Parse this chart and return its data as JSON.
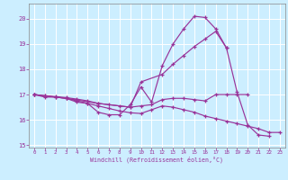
{
  "background_color": "#cceeff",
  "grid_color": "#ffffff",
  "line_color": "#993399",
  "xlabel": "Windchill (Refroidissement éolien,°C)",
  "ylim": [
    14.9,
    20.6
  ],
  "xlim": [
    -0.5,
    23.5
  ],
  "yticks": [
    15,
    16,
    17,
    18,
    19,
    20
  ],
  "xticks": [
    0,
    1,
    2,
    3,
    4,
    5,
    6,
    7,
    8,
    9,
    10,
    11,
    12,
    13,
    14,
    15,
    16,
    17,
    18,
    19,
    20,
    21,
    22,
    23
  ],
  "curve1_x": [
    0,
    1,
    2,
    3,
    4,
    5,
    6,
    7,
    8,
    9,
    10,
    11,
    12,
    13,
    14,
    15,
    16,
    17,
    18,
    19,
    20,
    21,
    22
  ],
  "curve1_y": [
    17.0,
    16.9,
    16.9,
    16.85,
    16.7,
    16.65,
    16.3,
    16.2,
    16.2,
    16.6,
    17.3,
    16.7,
    18.15,
    19.0,
    19.6,
    20.1,
    20.05,
    19.6,
    18.85,
    17.1,
    15.8,
    15.4,
    15.35
  ],
  "curve2_x": [
    0,
    3,
    6,
    9,
    10,
    12,
    13,
    14,
    15,
    16,
    17,
    18
  ],
  "curve2_y": [
    17.0,
    16.85,
    16.65,
    16.5,
    17.5,
    17.8,
    18.2,
    18.55,
    18.9,
    19.2,
    19.5,
    18.85
  ],
  "curve3_x": [
    0,
    1,
    2,
    3,
    4,
    5,
    6,
    7,
    8,
    9,
    10,
    11,
    12,
    13,
    14,
    15,
    16,
    17,
    18,
    19,
    20
  ],
  "curve3_y": [
    17.0,
    16.95,
    16.92,
    16.88,
    16.82,
    16.75,
    16.65,
    16.6,
    16.55,
    16.5,
    16.55,
    16.6,
    16.8,
    16.85,
    16.85,
    16.8,
    16.75,
    17.0,
    17.0,
    17.0,
    17.0
  ],
  "curve4_x": [
    0,
    1,
    2,
    3,
    4,
    5,
    6,
    7,
    8,
    9,
    10,
    11,
    12,
    13,
    14,
    15,
    16,
    17,
    18,
    19,
    20,
    21,
    22,
    23
  ],
  "curve4_y": [
    17.0,
    16.95,
    16.9,
    16.85,
    16.75,
    16.65,
    16.55,
    16.45,
    16.35,
    16.28,
    16.25,
    16.4,
    16.55,
    16.5,
    16.4,
    16.3,
    16.15,
    16.05,
    15.95,
    15.85,
    15.75,
    15.65,
    15.5,
    15.5
  ]
}
